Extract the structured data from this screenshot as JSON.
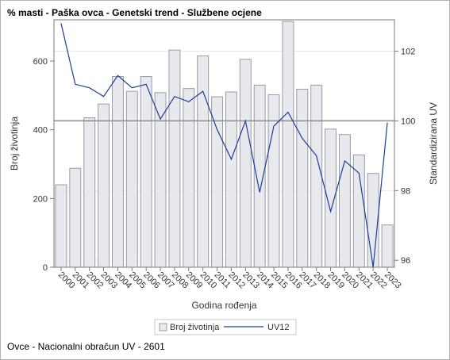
{
  "title": "% masti - Paška ovca - Genetski trend - Službene ocjene",
  "footnote": "Ovce - Nacionalni obračun UV - 2601",
  "colors": {
    "bar_fill": "#e8e9ed",
    "bar_stroke": "#9a9aa8",
    "line": "#1b3d9a",
    "refline": "#8c8c8c",
    "grid": "#e8e8ee",
    "axis": "#7a7a7a"
  },
  "chart_data": {
    "type": "bar",
    "categories": [
      "2000",
      "2001",
      "2002",
      "2003",
      "2004",
      "2005",
      "2006",
      "2007",
      "2008",
      "2009",
      "2010",
      "2011",
      "2012",
      "2013",
      "2014",
      "2015",
      "2016",
      "2017",
      "2018",
      "2019",
      "2020",
      "2021",
      "2022",
      "2023"
    ],
    "xlabel": "Godina rođenja",
    "ylabel": "Broj životinja",
    "y2label": "Standardizirana UV",
    "ylim": [
      0,
      720
    ],
    "yticks": [
      0,
      200,
      400,
      600
    ],
    "y2lim": [
      95.8,
      102.9
    ],
    "y2ticks": [
      96,
      98,
      100,
      102
    ],
    "reference_line": 100,
    "legend_position": "bottom",
    "series": [
      {
        "name": "Broj životinja",
        "type": "bar",
        "axis": "left",
        "values": [
          240,
          288,
          435,
          475,
          555,
          512,
          555,
          508,
          632,
          520,
          615,
          496,
          510,
          605,
          530,
          502,
          715,
          518,
          530,
          402,
          386,
          327,
          273,
          123
        ]
      },
      {
        "name": "UV12",
        "type": "line",
        "axis": "right",
        "values": [
          102.8,
          101.05,
          100.95,
          100.7,
          101.3,
          100.95,
          101.05,
          100.05,
          100.7,
          100.55,
          100.85,
          99.75,
          98.9,
          100.0,
          97.95,
          99.85,
          100.25,
          99.5,
          99.0,
          97.4,
          98.85,
          98.5,
          95.8,
          99.95
        ]
      }
    ]
  }
}
